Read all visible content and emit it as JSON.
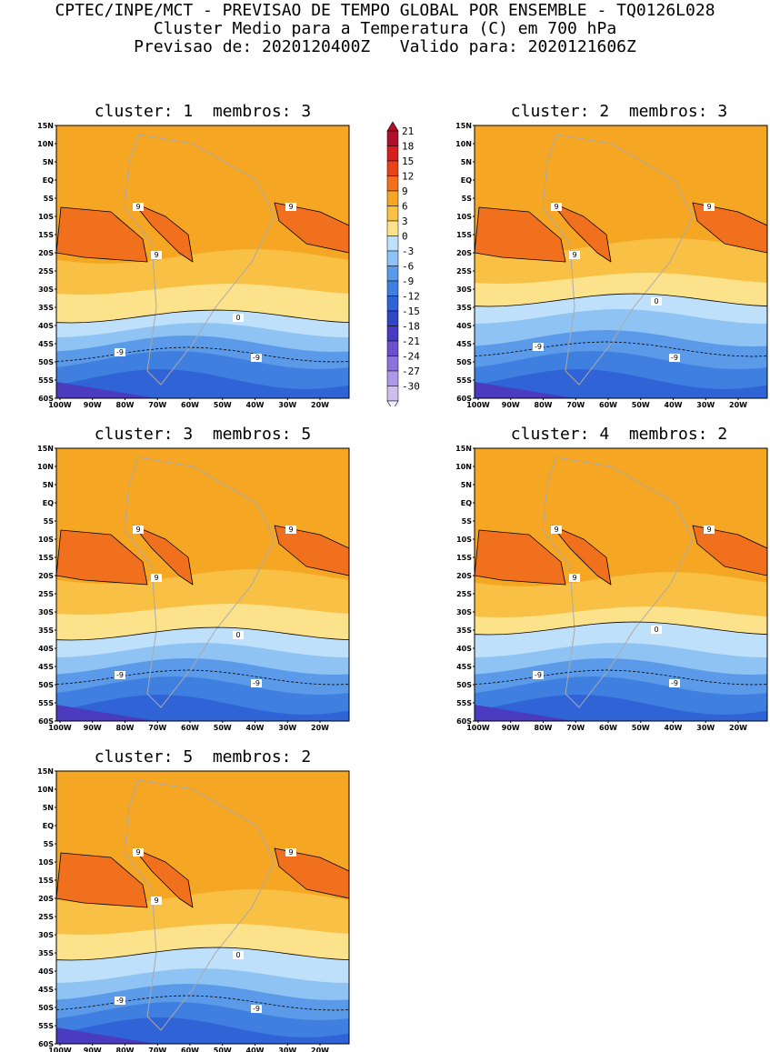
{
  "header": {
    "line1": "CPTEC/INPE/MCT - PREVISAO DE TEMPO GLOBAL POR ENSEMBLE - TQ0126L028",
    "line2": "Cluster Medio para a Temperatura (C) em 700 hPa",
    "line3": "Previsao de: 2020120400Z   Valido para: 2020121606Z"
  },
  "lat_ticks": [
    "15N",
    "10N",
    "5N",
    "EQ",
    "5S",
    "10S",
    "15S",
    "20S",
    "25S",
    "30S",
    "35S",
    "40S",
    "45S",
    "50S",
    "55S",
    "60S"
  ],
  "lon_ticks": [
    "100W",
    "90W",
    "80W",
    "70W",
    "60W",
    "50W",
    "40W",
    "30W",
    "20W"
  ],
  "colorbar": {
    "levels": [
      "21",
      "18",
      "15",
      "12",
      "9",
      "6",
      "3",
      "0",
      "-3",
      "-6",
      "-9",
      "-12",
      "-15",
      "-18",
      "-21",
      "-24",
      "-27",
      "-30"
    ],
    "colors": [
      "#b0102a",
      "#d62020",
      "#e8421a",
      "#f0701e",
      "#f5a623",
      "#f8c044",
      "#fde28c",
      "#bfe0fa",
      "#8ec3f4",
      "#5a9ae8",
      "#3f7fe0",
      "#2f63d6",
      "#3046c6",
      "#4a3bbf",
      "#6b4fcf",
      "#8c74dc",
      "#ac9ae6",
      "#cdc0f0"
    ]
  },
  "panels": [
    {
      "id": 1,
      "title": "cluster: 1  membros: 3"
    },
    {
      "id": 2,
      "title": "cluster: 2  membros: 3"
    },
    {
      "id": 3,
      "title": "cluster: 3  membros: 5"
    },
    {
      "id": 4,
      "title": "cluster: 4  membros: 2"
    },
    {
      "id": 5,
      "title": "cluster: 5  membros: 2"
    }
  ],
  "contour_labels": {
    "zero": "0",
    "nine": "9",
    "minus_nine": "-9"
  },
  "colors": {
    "warm_band": "#f5a623",
    "hot_band": "#f0701e",
    "mid_band": "#f8c044",
    "light_band": "#fde28c",
    "cool_light": "#bfe0fa",
    "cool_1": "#8ec3f4",
    "cool_2": "#5a9ae8",
    "cool_3": "#3f7fe0",
    "cool_4": "#2f63d6",
    "cool_5": "#4a3bbf",
    "land": "#aaaaaa"
  }
}
